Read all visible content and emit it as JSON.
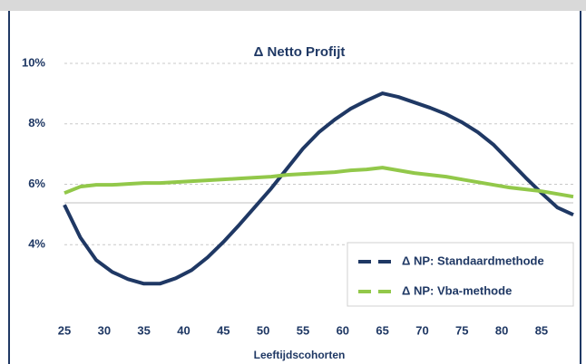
{
  "chart_data": {
    "type": "line",
    "title": "Δ Netto Profijt",
    "xlabel": "Leeftijdscohorten",
    "x": [
      25,
      27,
      29,
      31,
      33,
      35,
      37,
      39,
      41,
      43,
      45,
      47,
      49,
      51,
      53,
      55,
      57,
      59,
      61,
      63,
      65,
      67,
      69,
      71,
      73,
      75,
      77,
      79,
      81,
      83,
      85,
      87,
      89
    ],
    "series": [
      {
        "name": "Δ NP: Standaardmethode",
        "color": "#1f3864",
        "values": [
          5.32,
          4.24,
          3.49,
          3.1,
          2.86,
          2.71,
          2.71,
          2.89,
          3.16,
          3.58,
          4.09,
          4.66,
          5.26,
          5.86,
          6.52,
          7.18,
          7.72,
          8.14,
          8.5,
          8.77,
          9.01,
          8.89,
          8.71,
          8.53,
          8.32,
          8.05,
          7.72,
          7.3,
          6.76,
          6.22,
          5.71,
          5.23,
          4.99
        ]
      },
      {
        "name": "Δ NP: Vba-methode",
        "color": "#92c84a",
        "values": [
          5.71,
          5.92,
          5.98,
          5.98,
          6.01,
          6.04,
          6.04,
          6.07,
          6.1,
          6.13,
          6.16,
          6.19,
          6.22,
          6.25,
          6.31,
          6.34,
          6.37,
          6.4,
          6.46,
          6.49,
          6.55,
          6.46,
          6.37,
          6.31,
          6.25,
          6.16,
          6.07,
          5.98,
          5.89,
          5.83,
          5.77,
          5.68,
          5.59
        ]
      }
    ],
    "xlim": [
      25,
      89
    ],
    "xticks": [
      25,
      30,
      35,
      40,
      45,
      50,
      55,
      60,
      65,
      70,
      75,
      80,
      85
    ],
    "ylim": [
      2,
      10
    ],
    "yticks": [
      {
        "value": 4,
        "label": "4%"
      },
      {
        "value": 6,
        "label": "6%"
      },
      {
        "value": 8,
        "label": "8%"
      },
      {
        "value": 10,
        "label": "10%"
      }
    ],
    "grid": true,
    "legend": "lower right"
  }
}
